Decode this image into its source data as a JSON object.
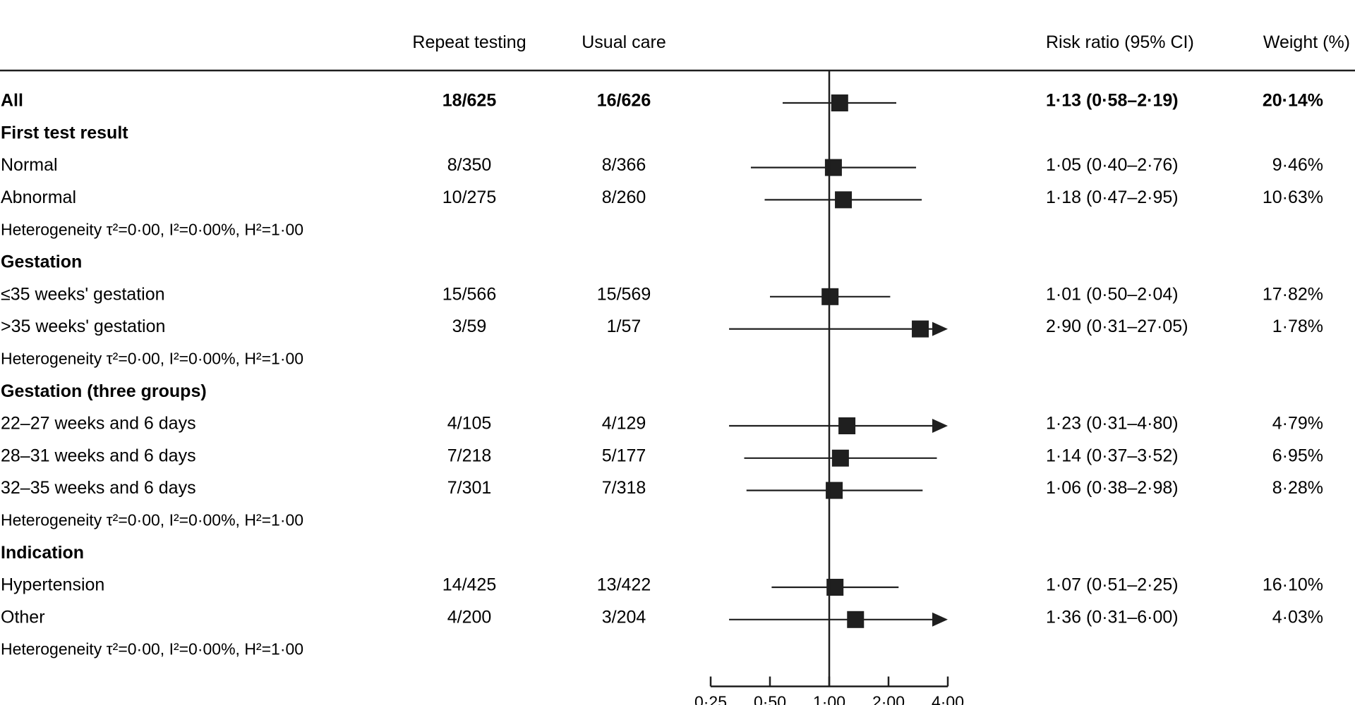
{
  "chart_data": {
    "type": "forest",
    "title": "",
    "columns": {
      "repeat": "Repeat testing",
      "usual": "Usual care",
      "rr": "Risk ratio (95% CI)",
      "weight": "Weight (%)"
    },
    "scale": "log2",
    "xlim": [
      0.25,
      4.0
    ],
    "reference_line": 1.0,
    "xticks": [
      0.25,
      0.5,
      1.0,
      2.0,
      4.0
    ],
    "xtick_labels": [
      "0·25",
      "0·50",
      "1·00",
      "2·00",
      "4·00"
    ],
    "rows": [
      {
        "kind": "overall",
        "label": "All",
        "repeat": "18/625",
        "usual": "16/626",
        "rr_text": "1·13 (0·58–2·19)",
        "weight": "20·14%",
        "rr": 1.13,
        "lo": 0.58,
        "hi": 2.19,
        "w": 20.14
      },
      {
        "kind": "group",
        "label": "First test result"
      },
      {
        "kind": "item",
        "label": "Normal",
        "repeat": "8/350",
        "usual": "8/366",
        "rr_text": "1·05 (0·40–2·76)",
        "weight": "9·46%",
        "rr": 1.05,
        "lo": 0.4,
        "hi": 2.76,
        "w": 9.46
      },
      {
        "kind": "item",
        "label": "Abnormal",
        "repeat": "10/275",
        "usual": "8/260",
        "rr_text": "1·18 (0·47–2·95)",
        "weight": "10·63%",
        "rr": 1.18,
        "lo": 0.47,
        "hi": 2.95,
        "w": 10.63
      },
      {
        "kind": "het",
        "label": "Heterogeneity τ²=0·00, I²=0·00%, H²=1·00"
      },
      {
        "kind": "group",
        "label": "Gestation"
      },
      {
        "kind": "item",
        "label": "≤35 weeks' gestation",
        "repeat": "15/566",
        "usual": "15/569",
        "rr_text": "1·01 (0·50–2·04)",
        "weight": "17·82%",
        "rr": 1.01,
        "lo": 0.5,
        "hi": 2.04,
        "w": 17.82
      },
      {
        "kind": "item",
        "label": ">35 weeks' gestation",
        "repeat": "3/59",
        "usual": "1/57",
        "rr_text": "2·90 (0·31–27·05)",
        "weight": "1·78%",
        "rr": 2.9,
        "lo": 0.31,
        "hi": 27.05,
        "w": 1.78
      },
      {
        "kind": "het",
        "label": "Heterogeneity τ²=0·00, I²=0·00%, H²=1·00"
      },
      {
        "kind": "group",
        "label": "Gestation (three groups)"
      },
      {
        "kind": "item",
        "label": "22–27 weeks and 6 days",
        "repeat": "4/105",
        "usual": "4/129",
        "rr_text": "1·23 (0·31–4·80)",
        "weight": "4·79%",
        "rr": 1.23,
        "lo": 0.31,
        "hi": 4.8,
        "w": 4.79
      },
      {
        "kind": "item",
        "label": "28–31 weeks and 6 days",
        "repeat": "7/218",
        "usual": "5/177",
        "rr_text": "1·14 (0·37–3·52)",
        "weight": "6·95%",
        "rr": 1.14,
        "lo": 0.37,
        "hi": 3.52,
        "w": 6.95
      },
      {
        "kind": "item",
        "label": "32–35 weeks and 6 days",
        "repeat": "7/301",
        "usual": "7/318",
        "rr_text": "1·06 (0·38–2·98)",
        "weight": "8·28%",
        "rr": 1.06,
        "lo": 0.38,
        "hi": 2.98,
        "w": 8.28
      },
      {
        "kind": "het",
        "label": "Heterogeneity τ²=0·00, I²=0·00%, H²=1·00"
      },
      {
        "kind": "group",
        "label": "Indication"
      },
      {
        "kind": "item",
        "label": "Hypertension",
        "repeat": "14/425",
        "usual": "13/422",
        "rr_text": "1·07 (0·51–2·25)",
        "weight": "16·10%",
        "rr": 1.07,
        "lo": 0.51,
        "hi": 2.25,
        "w": 16.1
      },
      {
        "kind": "item",
        "label": "Other",
        "repeat": "4/200",
        "usual": "3/204",
        "rr_text": "1·36 (0·31–6·00)",
        "weight": "4·03%",
        "rr": 1.36,
        "lo": 0.31,
        "hi": 6.0,
        "w": 4.03
      },
      {
        "kind": "het",
        "label": "Heterogeneity τ²=0·00, I²=0·00%, H²=1·00"
      }
    ]
  }
}
